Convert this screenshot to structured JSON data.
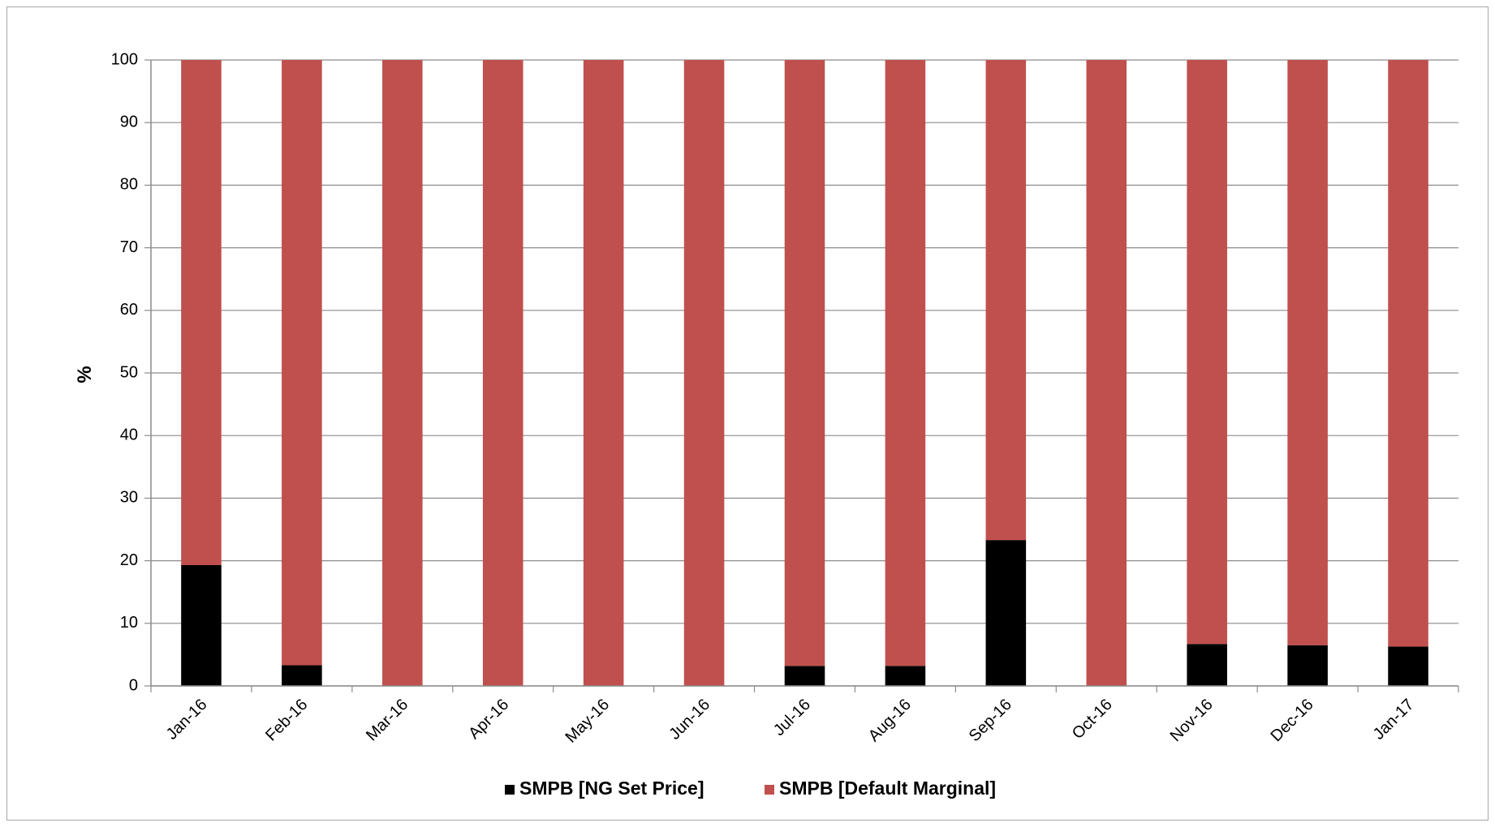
{
  "chart_data": {
    "type": "bar",
    "stacked": true,
    "percent": true,
    "title": "",
    "xlabel": "",
    "ylabel": "%",
    "ylim": [
      0,
      100
    ],
    "yticks": [
      0,
      10,
      20,
      30,
      40,
      50,
      60,
      70,
      80,
      90,
      100
    ],
    "grid": true,
    "legend_position": "bottom",
    "categories": [
      "Jan-16",
      "Feb-16",
      "Mar-16",
      "Apr-16",
      "May-16",
      "Jun-16",
      "Jul-16",
      "Aug-16",
      "Sep-16",
      "Oct-16",
      "Nov-16",
      "Dec-16",
      "Jan-17"
    ],
    "series": [
      {
        "name": "SMPB [NG Set Price]",
        "color": "#000000",
        "values": [
          19.3,
          3.3,
          0,
          0,
          0,
          0,
          3.2,
          3.2,
          23.3,
          0,
          6.7,
          6.5,
          6.3
        ]
      },
      {
        "name": "SMPB [Default Marginal]",
        "color": "#c0504d",
        "values": [
          80.7,
          96.7,
          100,
          100,
          100,
          100,
          96.8,
          96.8,
          76.7,
          100,
          93.3,
          93.5,
          93.7
        ]
      }
    ]
  }
}
